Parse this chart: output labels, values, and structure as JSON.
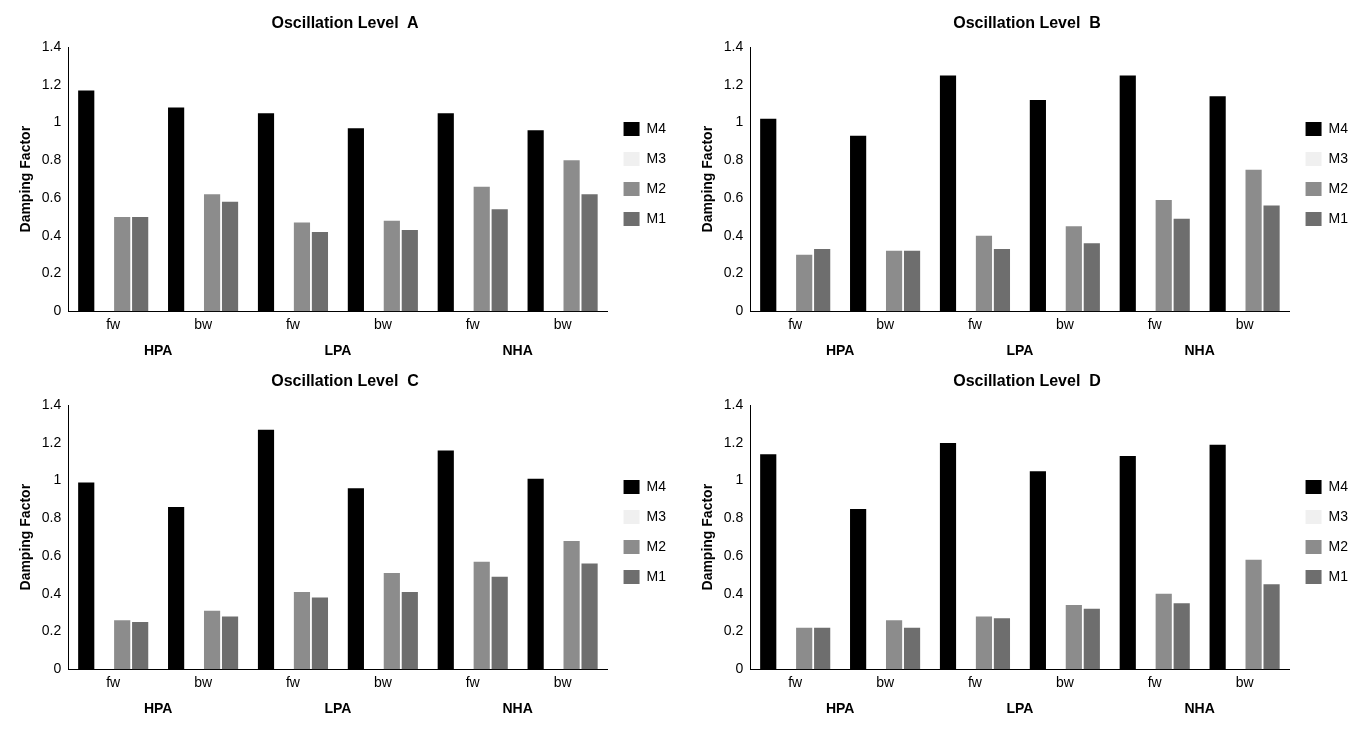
{
  "chart_data": [
    {
      "type": "bar",
      "title": "Oscillation Level  A",
      "ylabel": "Damping Factor",
      "categories": [
        "fw",
        "bw",
        "fw",
        "bw",
        "fw",
        "bw"
      ],
      "annotations": [
        "HPA",
        "LPA",
        "NHA"
      ],
      "ylim": [
        0,
        1.4
      ],
      "yticks": [
        0,
        0.2,
        0.4,
        0.6,
        0.8,
        1,
        1.2,
        1.4
      ],
      "legend": "right",
      "series": [
        {
          "name": "M4",
          "color": "#000000",
          "values": [
            1.17,
            1.08,
            1.05,
            0.97,
            1.05,
            0.96
          ]
        },
        {
          "name": "M3",
          "color": "#f0f0f0",
          "values": [
            null,
            null,
            null,
            null,
            null,
            null
          ]
        },
        {
          "name": "M2",
          "color": "#8c8c8c",
          "values": [
            0.5,
            0.62,
            0.47,
            0.48,
            0.66,
            0.8
          ]
        },
        {
          "name": "M1",
          "color": "#6e6e6e",
          "values": [
            0.5,
            0.58,
            0.42,
            0.43,
            0.54,
            0.62
          ]
        }
      ]
    },
    {
      "type": "bar",
      "title": "Oscillation Level  B",
      "ylabel": "Damping Factor",
      "categories": [
        "fw",
        "bw",
        "fw",
        "bw",
        "fw",
        "bw"
      ],
      "annotations": [
        "HPA",
        "LPA",
        "NHA"
      ],
      "ylim": [
        0,
        1.4
      ],
      "yticks": [
        0,
        0.2,
        0.4,
        0.6,
        0.8,
        1,
        1.2,
        1.4
      ],
      "legend": "right",
      "series": [
        {
          "name": "M4",
          "color": "#000000",
          "values": [
            1.02,
            0.93,
            1.25,
            1.12,
            1.25,
            1.14
          ]
        },
        {
          "name": "M3",
          "color": "#f0f0f0",
          "values": [
            null,
            null,
            null,
            null,
            null,
            null
          ]
        },
        {
          "name": "M2",
          "color": "#8c8c8c",
          "values": [
            0.3,
            0.32,
            0.4,
            0.45,
            0.59,
            0.75
          ]
        },
        {
          "name": "M1",
          "color": "#6e6e6e",
          "values": [
            0.33,
            0.32,
            0.33,
            0.36,
            0.49,
            0.56
          ]
        }
      ]
    },
    {
      "type": "bar",
      "title": "Oscillation Level  C",
      "ylabel": "Damping Factor",
      "categories": [
        "fw",
        "bw",
        "fw",
        "bw",
        "fw",
        "bw"
      ],
      "annotations": [
        "HPA",
        "LPA",
        "NHA"
      ],
      "ylim": [
        0,
        1.4
      ],
      "yticks": [
        0,
        0.2,
        0.4,
        0.6,
        0.8,
        1,
        1.2,
        1.4
      ],
      "legend": "right",
      "series": [
        {
          "name": "M4",
          "color": "#000000",
          "values": [
            0.99,
            0.86,
            1.27,
            0.96,
            1.16,
            1.01
          ]
        },
        {
          "name": "M3",
          "color": "#f0f0f0",
          "values": [
            null,
            null,
            null,
            null,
            null,
            null
          ]
        },
        {
          "name": "M2",
          "color": "#8c8c8c",
          "values": [
            0.26,
            0.31,
            0.41,
            0.51,
            0.57,
            0.68
          ]
        },
        {
          "name": "M1",
          "color": "#6e6e6e",
          "values": [
            0.25,
            0.28,
            0.38,
            0.41,
            0.49,
            0.56
          ]
        }
      ]
    },
    {
      "type": "bar",
      "title": "Oscillation Level  D",
      "ylabel": "Damping Factor",
      "categories": [
        "fw",
        "bw",
        "fw",
        "bw",
        "fw",
        "bw"
      ],
      "annotations": [
        "HPA",
        "LPA",
        "NHA"
      ],
      "ylim": [
        0,
        1.4
      ],
      "yticks": [
        0,
        0.2,
        0.4,
        0.6,
        0.8,
        1,
        1.2,
        1.4
      ],
      "legend": "right",
      "series": [
        {
          "name": "M4",
          "color": "#000000",
          "values": [
            1.14,
            0.85,
            1.2,
            1.05,
            1.13,
            1.19
          ]
        },
        {
          "name": "M3",
          "color": "#f0f0f0",
          "values": [
            null,
            null,
            null,
            null,
            null,
            null
          ]
        },
        {
          "name": "M2",
          "color": "#8c8c8c",
          "values": [
            0.22,
            0.26,
            0.28,
            0.34,
            0.4,
            0.58
          ]
        },
        {
          "name": "M1",
          "color": "#6e6e6e",
          "values": [
            0.22,
            0.22,
            0.27,
            0.32,
            0.35,
            0.45
          ]
        }
      ]
    }
  ]
}
